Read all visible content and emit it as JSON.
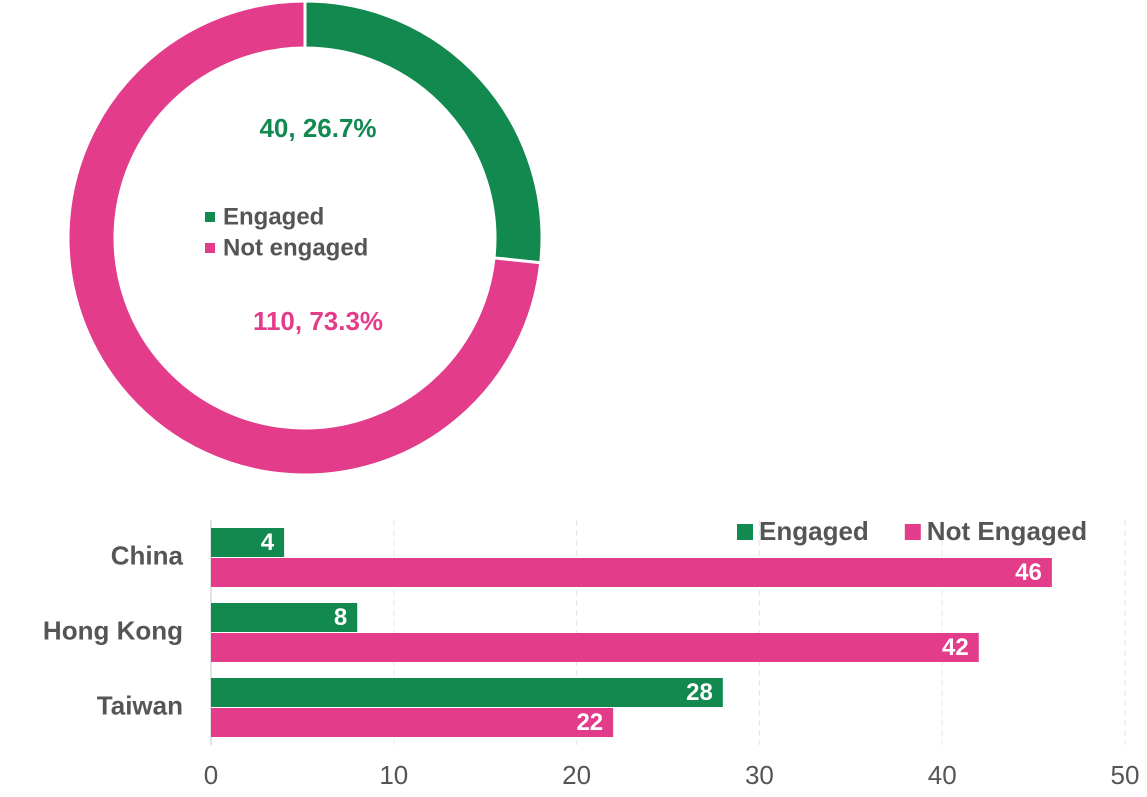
{
  "chart_data": [
    {
      "type": "donut",
      "categories": [
        "Engaged",
        "Not engaged"
      ],
      "values": [
        40,
        110
      ],
      "value_labels": [
        "40, 26.7%",
        "110, 73.3%"
      ],
      "colors": [
        "#12894f",
        "#e23c8a"
      ],
      "legend": "center"
    },
    {
      "type": "hbar",
      "categories": [
        "China",
        "Hong Kong",
        "Taiwan"
      ],
      "series": [
        {
          "name": "Engaged",
          "color": "#12894f",
          "values": [
            4,
            8,
            28
          ]
        },
        {
          "name": "Not Engaged",
          "color": "#e23c8a",
          "values": [
            46,
            42,
            22
          ]
        }
      ],
      "xlim": [
        0,
        50
      ],
      "xticks": [
        0,
        10,
        20,
        30,
        40,
        50
      ],
      "grid": true,
      "legend": "top-right"
    }
  ]
}
